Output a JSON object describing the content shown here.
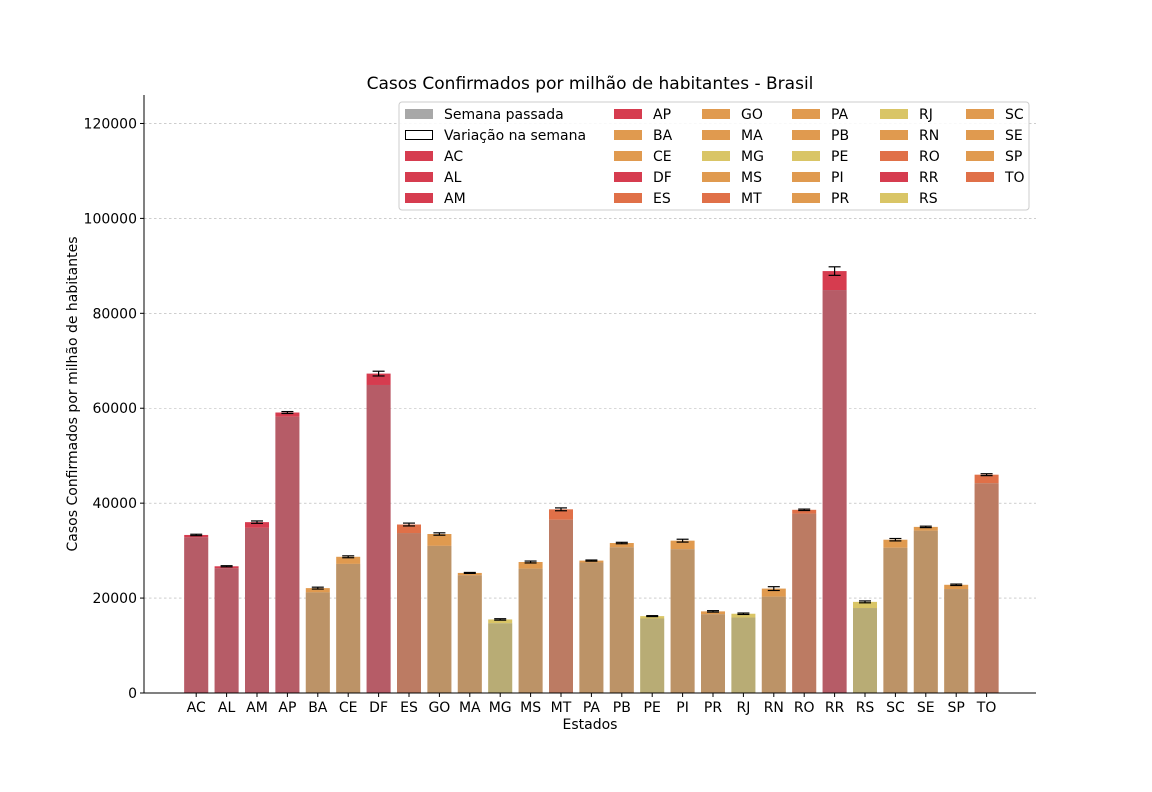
{
  "chart_data": {
    "type": "bar",
    "title": "Casos Confirmados por milhão de habitantes - Brasil",
    "xlabel": "Estados",
    "ylabel": "Casos Confirmados por milhão de habitantes",
    "ylim": [
      0,
      126000
    ],
    "yticks": [
      0,
      20000,
      40000,
      60000,
      80000,
      100000,
      120000
    ],
    "grid": "horizontal dashed",
    "legend_position": "top-right",
    "legend_items": [
      {
        "label": "Semana passada",
        "color": "#a8a8a8",
        "style": "filled"
      },
      {
        "label": "Variação na semana",
        "color": "#ffffff",
        "style": "outline"
      }
    ],
    "categories": [
      "AC",
      "AL",
      "AM",
      "AP",
      "BA",
      "CE",
      "DF",
      "ES",
      "GO",
      "MA",
      "MG",
      "MS",
      "MT",
      "PA",
      "PB",
      "PE",
      "PI",
      "PR",
      "RJ",
      "RN",
      "RO",
      "RR",
      "RS",
      "SC",
      "SE",
      "SP",
      "TO"
    ],
    "colors": [
      "#d63c4f",
      "#d63c4f",
      "#d63c4f",
      "#d63c4f",
      "#e09a4f",
      "#e09a4f",
      "#d63c4f",
      "#e07048",
      "#e09a4f",
      "#e09a4f",
      "#d9c566",
      "#e09a4f",
      "#e07048",
      "#e09a4f",
      "#e09a4f",
      "#d9c566",
      "#e09a4f",
      "#e09a4f",
      "#d9c566",
      "#e09a4f",
      "#e07048",
      "#d63c4f",
      "#d9c566",
      "#e09a4f",
      "#e09a4f",
      "#e09a4f",
      "#e07048"
    ],
    "series": [
      {
        "name": "Semana passada",
        "values": [
          32800,
          26300,
          34800,
          58200,
          21200,
          27200,
          64900,
          33700,
          31000,
          24800,
          14700,
          26200,
          36500,
          27500,
          30700,
          15700,
          30300,
          16600,
          15900,
          20300,
          37800,
          84900,
          17900,
          30600,
          34200,
          21900,
          44200
        ]
      },
      {
        "name": "Variação na semana",
        "values": [
          500,
          400,
          1200,
          900,
          900,
          1500,
          2400,
          1800,
          2500,
          500,
          800,
          1400,
          2200,
          400,
          900,
          500,
          1800,
          600,
          800,
          1700,
          800,
          4000,
          1300,
          1700,
          800,
          900,
          1800
        ]
      }
    ],
    "error": [
      150,
      120,
      250,
      200,
      200,
      200,
      500,
      300,
      250,
      100,
      150,
      200,
      300,
      120,
      150,
      100,
      300,
      150,
      150,
      400,
      150,
      900,
      200,
      250,
      150,
      150,
      200
    ]
  }
}
